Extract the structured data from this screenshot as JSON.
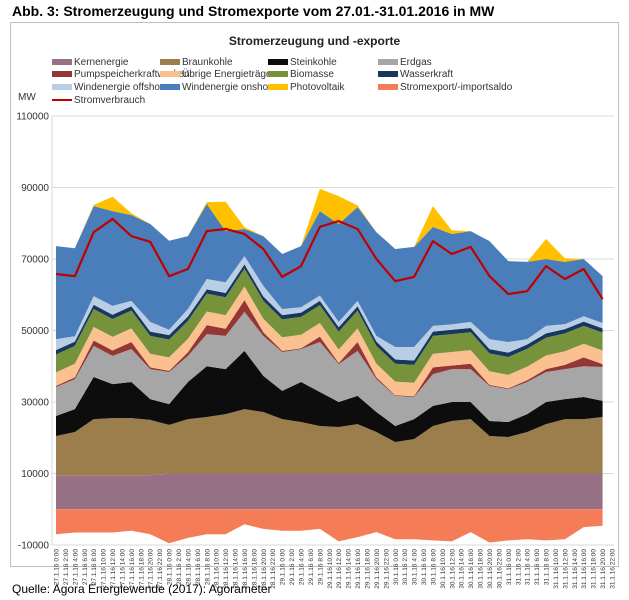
{
  "figure_title": "Abb. 3: Stromerzeugung und Stromexporte vom 27.01.-31.01.2016 in MW",
  "source": "Quelle: Agora Energiewende (2017): Agorameter",
  "chart_data": {
    "type": "area",
    "stacked": true,
    "title": "Stromerzeugung und -exporte",
    "ylabel": "MW",
    "ylim": [
      -10000,
      110000
    ],
    "yticks": [
      -10000,
      10000,
      30000,
      50000,
      70000,
      90000,
      110000
    ],
    "ytick_labels": [
      "-10000",
      "10000",
      "30000",
      "50000",
      "70000",
      "90000",
      "110000"
    ],
    "grid": true,
    "legend_position": "top",
    "xtick_labels": [
      "27.1.16 0:00",
      "27.1.16 2:00",
      "27.1.16 4:00",
      "27.1.16 6:00",
      "27.1.16 8:00",
      "27.1.16 10:00",
      "27.1.16 12:00",
      "27.1.16 14:00",
      "27.1.16 16:00",
      "27.1.16 18:00",
      "27.1.16 20:00",
      "27.1.16 22:00",
      "28.1.16 0:00",
      "28.1.16 2:00",
      "28.1.16 4:00",
      "28.1.16 6:00",
      "28.1.16 8:00",
      "28.1.16 10:00",
      "28.1.16 12:00",
      "28.1.16 14:00",
      "28.1.16 16:00",
      "28.1.16 18:00",
      "28.1.16 20:00",
      "28.1.16 22:00",
      "29.1.16 0:00",
      "29.1.16 2:00",
      "29.1.16 4:00",
      "29.1.16 6:00",
      "29.1.16 8:00",
      "29.1.16 10:00",
      "29.1.16 12:00",
      "29.1.16 14:00",
      "29.1.16 16:00",
      "29.1.16 18:00",
      "29.1.16 20:00",
      "29.1.16 22:00",
      "30.1.16 0:00",
      "30.1.16 2:00",
      "30.1.16 4:00",
      "30.1.16 6:00",
      "30.1.16 8:00",
      "30.1.16 10:00",
      "30.1.16 12:00",
      "30.1.16 14:00",
      "30.1.16 16:00",
      "30.1.16 18:00",
      "30.1.16 20:00",
      "30.1.16 22:00",
      "31.1.16 0:00",
      "31.1.16 2:00",
      "31.1.16 4:00",
      "31.1.16 6:00",
      "31.1.16 8:00",
      "31.1.16 10:00",
      "31.1.16 12:00",
      "31.1.16 14:00",
      "31.1.16 16:00",
      "31.1.16 18:00",
      "31.1.16 20:00",
      "31.1.16 22:00"
    ],
    "x": [
      "27.1.16 0:00",
      "27.1.16 4:00",
      "27.1.16 8:00",
      "27.1.16 12:00",
      "27.1.16 16:00",
      "27.1.16 20:00",
      "28.1.16 0:00",
      "28.1.16 4:00",
      "28.1.16 8:00",
      "28.1.16 12:00",
      "28.1.16 16:00",
      "28.1.16 20:00",
      "29.1.16 0:00",
      "29.1.16 4:00",
      "29.1.16 8:00",
      "29.1.16 12:00",
      "29.1.16 16:00",
      "29.1.16 20:00",
      "30.1.16 0:00",
      "30.1.16 4:00",
      "30.1.16 8:00",
      "30.1.16 12:00",
      "30.1.16 16:00",
      "30.1.16 20:00",
      "31.1.16 0:00",
      "31.1.16 4:00",
      "31.1.16 8:00",
      "31.1.16 12:00",
      "31.1.16 16:00",
      "31.1.16 20:00"
    ],
    "series": [
      {
        "name": "Kernenergie",
        "color": "#967186",
        "values": [
          9500,
          9500,
          9500,
          9500,
          9500,
          9500,
          10000,
          10000,
          10000,
          10000,
          10000,
          10000,
          10000,
          10000,
          10000,
          10000,
          10000,
          10000,
          10000,
          10000,
          10000,
          10000,
          10000,
          10000,
          10000,
          10000,
          10000,
          10000,
          10000,
          10000
        ]
      },
      {
        "name": "Braunkohle",
        "color": "#9b7e4b",
        "values": [
          11000,
          12100,
          15700,
          16000,
          16000,
          15500,
          13600,
          15200,
          15800,
          16600,
          18000,
          17200,
          15200,
          14400,
          13300,
          13000,
          13800,
          11600,
          8800,
          9600,
          13300,
          14700,
          15200,
          10500,
          10200,
          11600,
          13800,
          15200,
          15200,
          15800
        ]
      },
      {
        "name": "Steinkohle",
        "color": "#0d0d0d",
        "values": [
          5600,
          6400,
          11800,
          9500,
          10100,
          5800,
          5800,
          10400,
          14200,
          12600,
          16300,
          10100,
          7900,
          11200,
          9500,
          7000,
          7900,
          5600,
          4500,
          5600,
          5600,
          5300,
          4800,
          4200,
          4200,
          5000,
          6200,
          5600,
          6200,
          4500
        ]
      },
      {
        "name": "Erdgas",
        "color": "#a6a6a6",
        "values": [
          8100,
          8400,
          8700,
          7900,
          9200,
          8400,
          9000,
          7300,
          9000,
          9300,
          10900,
          11200,
          10900,
          9200,
          14000,
          10600,
          12600,
          9200,
          8400,
          6200,
          8900,
          9200,
          9200,
          9800,
          9200,
          9000,
          8400,
          8400,
          8600,
          9500
        ]
      },
      {
        "name": "Pumpspeicherkraftwerken",
        "color": "#943634",
        "values": [
          300,
          500,
          1500,
          1500,
          2000,
          500,
          300,
          1000,
          2500,
          2000,
          3300,
          1000,
          300,
          200,
          1500,
          300,
          2500,
          500,
          200,
          200,
          1900,
          1000,
          1500,
          300,
          200,
          500,
          800,
          1200,
          2500,
          800
        ]
      },
      {
        "name": "Übrige Energieträger",
        "color": "#fac090",
        "values": [
          3800,
          3800,
          3800,
          3800,
          3800,
          3800,
          3800,
          3800,
          3800,
          3800,
          3800,
          3800,
          3800,
          3800,
          3800,
          3800,
          3800,
          3800,
          3800,
          3800,
          3800,
          3800,
          3800,
          3800,
          3800,
          3800,
          3800,
          3800,
          3800,
          3800
        ]
      },
      {
        "name": "Biomasse",
        "color": "#76933c",
        "values": [
          5000,
          5000,
          5000,
          5000,
          5000,
          5000,
          5000,
          5000,
          5000,
          5000,
          5000,
          5000,
          5000,
          5000,
          5000,
          5000,
          5000,
          5000,
          5000,
          5000,
          5000,
          5000,
          5000,
          5000,
          5000,
          5000,
          5000,
          5000,
          5000,
          5000
        ]
      },
      {
        "name": "Wasserkraft",
        "color": "#17375e",
        "values": [
          1200,
          1200,
          1200,
          1200,
          1200,
          1200,
          1200,
          1200,
          1200,
          1200,
          1200,
          1200,
          1200,
          1200,
          1200,
          1200,
          1200,
          1200,
          1200,
          1200,
          1200,
          1200,
          1200,
          1200,
          1200,
          1200,
          1200,
          1200,
          1200,
          1200
        ]
      },
      {
        "name": "Windenergie offshore",
        "color": "#b9cde5",
        "values": [
          3100,
          1500,
          2400,
          2500,
          1500,
          2700,
          1500,
          2100,
          2900,
          3000,
          2300,
          3000,
          1700,
          1500,
          1500,
          1500,
          1500,
          1600,
          3500,
          3800,
          1600,
          1500,
          1700,
          2800,
          3000,
          1500,
          2100,
          1400,
          1500,
          1500
        ]
      },
      {
        "name": "Windenergie onshore",
        "color": "#4a7ebb",
        "values": [
          26000,
          24600,
          25200,
          26500,
          24000,
          27400,
          24900,
          20400,
          21000,
          14300,
          7600,
          13900,
          15400,
          17100,
          23600,
          27400,
          26200,
          29000,
          27400,
          28000,
          27700,
          25300,
          25400,
          27400,
          22600,
          21600,
          18700,
          17400,
          16000,
          13100
        ]
      },
      {
        "name": "Photovoltaik",
        "color": "#ffc000",
        "values": [
          0,
          0,
          300,
          4000,
          500,
          0,
          0,
          0,
          500,
          8200,
          500,
          0,
          0,
          0,
          6200,
          7800,
          500,
          0,
          0,
          0,
          5800,
          1000,
          0,
          0,
          0,
          0,
          5600,
          1000,
          0,
          0
        ]
      },
      {
        "name": "Stromexport/-importsaldo",
        "color": "#f47c56",
        "values": [
          -7000,
          -6500,
          -6500,
          -6500,
          -6000,
          -7000,
          -9500,
          -8000,
          -7000,
          -7000,
          -4200,
          -5500,
          -6000,
          -6000,
          -5500,
          -9000,
          -7800,
          -6400,
          -8400,
          -8400,
          -8700,
          -9000,
          -6400,
          -9300,
          -8700,
          -8400,
          -8700,
          -8400,
          -5000,
          -4600
        ]
      }
    ],
    "line": {
      "name": "Stromverbrauch",
      "color": "#c00000",
      "values": [
        65800,
        65200,
        77500,
        81200,
        76400,
        74800,
        65200,
        67200,
        77800,
        78400,
        77000,
        72800,
        65000,
        68000,
        79000,
        80600,
        78400,
        70000,
        63800,
        65000,
        75000,
        71400,
        73400,
        65200,
        60200,
        61000,
        68000,
        64400,
        67200,
        58800
      ]
    }
  }
}
